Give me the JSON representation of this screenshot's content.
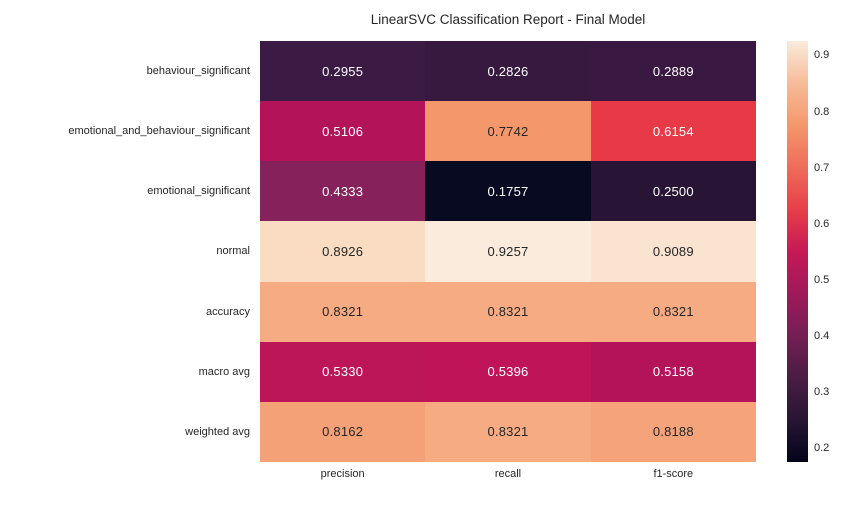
{
  "chart_data": {
    "type": "heatmap",
    "title": "LinearSVC Classification Report - Final Model",
    "colormap": "rocket",
    "background": "#ffffff",
    "text_color": "#262626",
    "columns": [
      "precision",
      "recall",
      "f1-score"
    ],
    "rows": [
      "behaviour_significant",
      "emotional_and_behaviour_significant",
      "emotional_significant",
      "normal",
      "accuracy",
      "macro avg",
      "weighted avg"
    ],
    "values": [
      [
        0.2955,
        0.2826,
        0.2889
      ],
      [
        0.5106,
        0.7742,
        0.6154
      ],
      [
        0.4333,
        0.1757,
        0.25
      ],
      [
        0.8926,
        0.9257,
        0.9089
      ],
      [
        0.8321,
        0.8321,
        0.8321
      ],
      [
        0.533,
        0.5396,
        0.5158
      ],
      [
        0.8162,
        0.8321,
        0.8188
      ]
    ],
    "value_labels": [
      [
        "0.2955",
        "0.2826",
        "0.2889"
      ],
      [
        "0.5106",
        "0.7742",
        "0.6154"
      ],
      [
        "0.4333",
        "0.1757",
        "0.2500"
      ],
      [
        "0.8926",
        "0.9257",
        "0.9089"
      ],
      [
        "0.8321",
        "0.8321",
        "0.8321"
      ],
      [
        "0.5330",
        "0.5396",
        "0.5158"
      ],
      [
        "0.8162",
        "0.8321",
        "0.8188"
      ]
    ],
    "cell_colors": [
      [
        "#3B1A43",
        "#37183F",
        "#391941"
      ],
      [
        "#B31358",
        "#F4986C",
        "#E73946"
      ],
      [
        "#87215C",
        "#070A20",
        "#281535"
      ],
      [
        "#F9DCC2",
        "#FAEBDC",
        "#FAE3CF"
      ],
      [
        "#F6AB83",
        "#F6AB83",
        "#F6AB83"
      ],
      [
        "#BC1659",
        "#C01459",
        "#B51359"
      ],
      [
        "#F5A178",
        "#F6AB83",
        "#F5A37A"
      ]
    ],
    "cell_text_colors": [
      [
        "#ffffff",
        "#ffffff",
        "#ffffff"
      ],
      [
        "#ffffff",
        "#262626",
        "#ffffff"
      ],
      [
        "#ffffff",
        "#ffffff",
        "#ffffff"
      ],
      [
        "#262626",
        "#262626",
        "#262626"
      ],
      [
        "#262626",
        "#262626",
        "#262626"
      ],
      [
        "#ffffff",
        "#ffffff",
        "#ffffff"
      ],
      [
        "#262626",
        "#262626",
        "#262626"
      ]
    ],
    "colorbar": {
      "vmin": 0.1757,
      "vmax": 0.9257,
      "ticks": [
        0.9,
        0.8,
        0.7,
        0.6,
        0.5,
        0.4,
        0.3,
        0.2
      ],
      "tick_labels": [
        "0.9",
        "0.8",
        "0.7",
        "0.6",
        "0.5",
        "0.4",
        "0.3",
        "0.2"
      ],
      "gradient_bottom_to_top": [
        "#03051A",
        "#281535",
        "#4B1C46",
        "#751F55",
        "#9F195A",
        "#C61956",
        "#E73F48",
        "#EE6C5A",
        "#F4986C",
        "#F7BB98",
        "#FAEBDC"
      ]
    }
  }
}
